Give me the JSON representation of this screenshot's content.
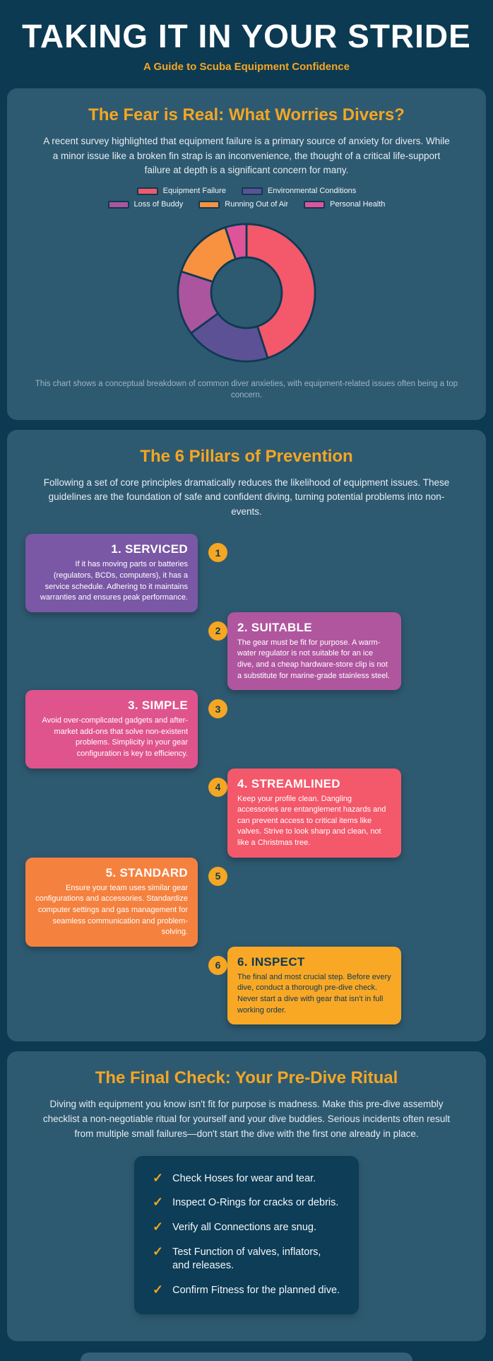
{
  "page": {
    "title": "TAKING IT IN YOUR STRIDE",
    "subtitle": "A Guide to Scuba Equipment Confidence"
  },
  "colors": {
    "background": "#0C3A52",
    "card_background": "#2E5A71",
    "accent_orange": "#F5A623",
    "chart_border": "#0D3A52",
    "checklist_background": "#0D3D57"
  },
  "fear_section": {
    "title": "The Fear is Real: What Worries Divers?",
    "intro": "A recent survey highlighted that equipment failure is a primary source of anxiety for divers. While a minor issue like a broken fin strap is an inconvenience, the thought of a critical life-support failure at depth is a significant concern for many.",
    "caption": "This chart shows a conceptual breakdown of common diver anxieties, with equipment-related issues often being a top concern."
  },
  "chart_data": {
    "type": "pie",
    "subtype": "donut",
    "labels": [
      "Equipment Failure",
      "Environmental Conditions",
      "Loss of Buddy",
      "Running Out of Air",
      "Personal Health"
    ],
    "values": [
      45,
      20,
      15,
      15,
      5
    ],
    "colors": [
      "#F4586B",
      "#5D5195",
      "#AB559F",
      "#F89140",
      "#DF5499"
    ],
    "legend_position": "top",
    "donut_hole_ratio": 0.5,
    "start_angle_deg": 0,
    "direction": "clockwise"
  },
  "pillars_section": {
    "title": "The 6 Pillars of Prevention",
    "intro": "Following a set of core principles dramatically reduces the likelihood of equipment issues. These guidelines are the foundation of safe and confident diving, turning potential problems into non-events.",
    "pillars": [
      {
        "number": "1",
        "title": "1. SERVICED",
        "body": "If it has moving parts or batteries (regulators, BCDs, computers), it has a service schedule. Adhering to it maintains warranties and ensures peak performance.",
        "color": "#7A58A5"
      },
      {
        "number": "2",
        "title": "2. SUITABLE",
        "body": "The gear must be fit for purpose. A warm-water regulator is not suitable for an ice dive, and a cheap hardware-store clip is not a substitute for marine-grade stainless steel.",
        "color": "#B0569F"
      },
      {
        "number": "3",
        "title": "3. SIMPLE",
        "body": "Avoid over-complicated gadgets and after-market add-ons that solve non-existent problems. Simplicity in your gear configuration is key to efficiency.",
        "color": "#E0548D"
      },
      {
        "number": "4",
        "title": "4. STREAMLINED",
        "body": "Keep your profile clean. Dangling accessories are entanglement hazards and can prevent access to critical items like valves. Strive to look sharp and clean, not like a Christmas tree.",
        "color": "#F4586B"
      },
      {
        "number": "5",
        "title": "5. STANDARD",
        "body": "Ensure your team uses similar gear configurations and accessories. Standardize computer settings and gas management for seamless communication and problem-solving.",
        "color": "#F5813F"
      },
      {
        "number": "6",
        "title": "6. INSPECT",
        "body": "The final and most crucial step. Before every dive, conduct a thorough pre-dive check. Never start a dive with gear that isn't in full working order.",
        "color": "#F9A826"
      }
    ]
  },
  "final_section": {
    "title": "The Final Check: Your Pre-Dive Ritual",
    "intro": "Diving with equipment you know isn't fit for purpose is madness. Make this pre-dive assembly checklist a non-negotiable ritual for yourself and your dive buddies. Serious incidents often result from multiple small failures—don't start the dive with the first one already in place.",
    "check_icon": "✓",
    "checklist": [
      "Check Hoses for wear and tear.",
      "Inspect O-Rings for cracks or debris.",
      "Verify all Connections are snug.",
      "Test Function of valves, inflators, and releases.",
      "Confirm Fitness for the planned dive."
    ]
  }
}
